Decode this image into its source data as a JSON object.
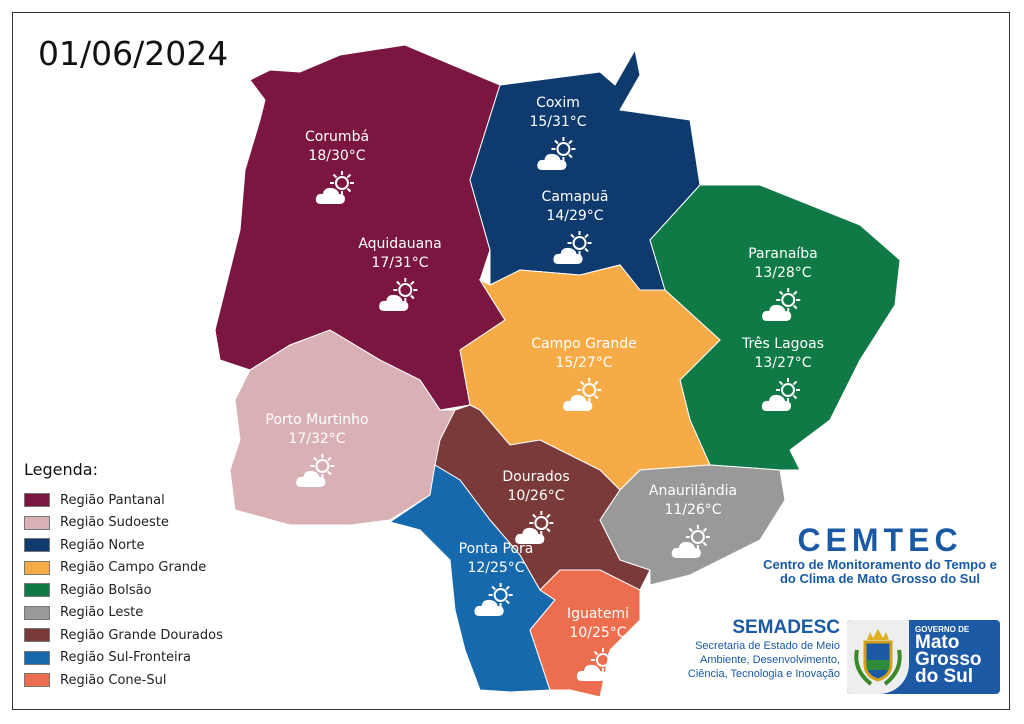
{
  "date": "01/06/2024",
  "legend": {
    "title": "Legenda:",
    "items": [
      {
        "label": "Região Pantanal",
        "color": "#7b1640"
      },
      {
        "label": "Região Sudoeste",
        "color": "#d9b0b3"
      },
      {
        "label": "Região Norte",
        "color": "#0e3a6e"
      },
      {
        "label": "Região Campo Grande",
        "color": "#f7ab47"
      },
      {
        "label": "Região Bolsão",
        "color": "#0f7a45"
      },
      {
        "label": "Região Leste",
        "color": "#999999"
      },
      {
        "label": "Região Grande Dourados",
        "color": "#7b3a3a"
      },
      {
        "label": "Região Sul-Fronteira",
        "color": "#1769ad"
      },
      {
        "label": "Região Cone-Sul",
        "color": "#ec6e4f"
      }
    ]
  },
  "cities": [
    {
      "name": "Corumbá",
      "temp": "18/30°C",
      "icon": "partly-cloudy-icon"
    },
    {
      "name": "Aquidauana",
      "temp": "17/31°C",
      "icon": "partly-cloudy-icon"
    },
    {
      "name": "Coxim",
      "temp": "15/31°C",
      "icon": "partly-cloudy-icon"
    },
    {
      "name": "Camapuã",
      "temp": "14/29°C",
      "icon": "partly-cloudy-icon"
    },
    {
      "name": "Paranaíba",
      "temp": "13/28°C",
      "icon": "partly-cloudy-icon"
    },
    {
      "name": "Três Lagoas",
      "temp": "13/27°C",
      "icon": "partly-cloudy-icon"
    },
    {
      "name": "Campo Grande",
      "temp": "15/27°C",
      "icon": "partly-cloudy-icon"
    },
    {
      "name": "Porto Murtinho",
      "temp": "17/32°C",
      "icon": "partly-cloudy-icon"
    },
    {
      "name": "Dourados",
      "temp": "10/26°C",
      "icon": "partly-cloudy-icon"
    },
    {
      "name": "Anaurilândia",
      "temp": "11/26°C",
      "icon": "partly-cloudy-icon"
    },
    {
      "name": "Ponta Porã",
      "temp": "12/25°C",
      "icon": "partly-cloudy-icon"
    },
    {
      "name": "Iguatemi",
      "temp": "10/25°C",
      "icon": "partly-cloudy-icon"
    }
  ],
  "cemtec": {
    "title": "CEMTEC",
    "subtitle": "Centro de Monitoramento do Tempo e do Clima de Mato Grosso do Sul"
  },
  "semadesc": {
    "title": "SEMADESC",
    "subtitle": "Secretaria de Estado de Meio Ambiente, Desenvolvimento, Ciência, Tecnologia e Inovação"
  },
  "government": {
    "small": "GOVERNO DE",
    "big": "Mato Grosso do Sul"
  }
}
